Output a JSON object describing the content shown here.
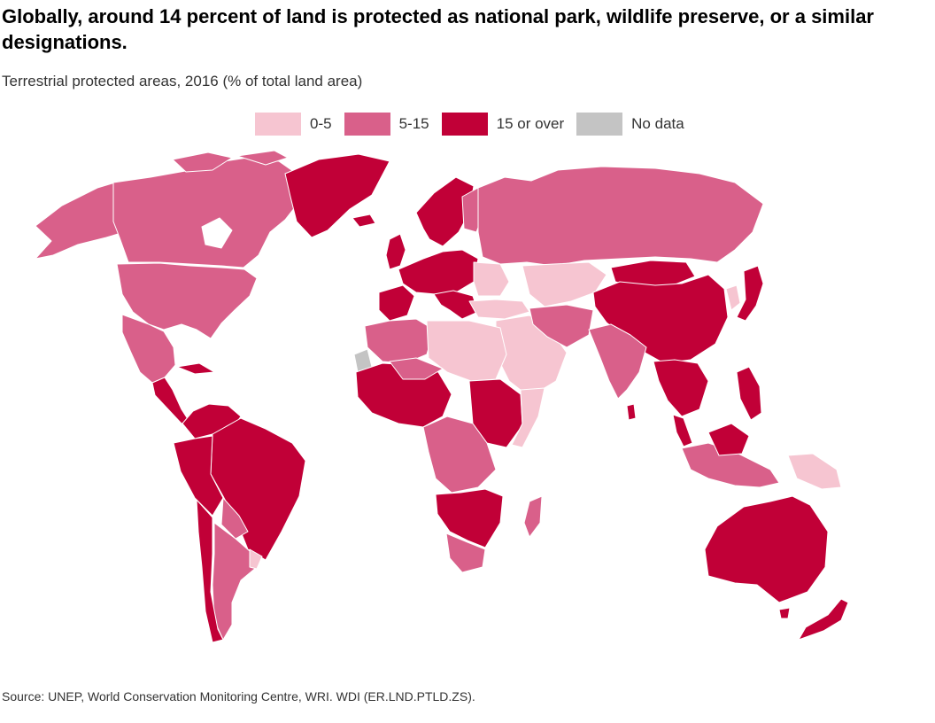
{
  "title": "Globally, around 14 percent of land is protected as national park, wildlife preserve, or a similar designations.",
  "subtitle": "Terrestrial protected areas, 2016 (% of total land area)",
  "legend": [
    {
      "label": "0-5",
      "color": "#f6c5d1"
    },
    {
      "label": "5-15",
      "color": "#d9608a"
    },
    {
      "label": "15 or over",
      "color": "#c10037"
    },
    {
      "label": "No data",
      "color": "#c4c4c4"
    }
  ],
  "source": "Source: UNEP, World Conservation Monitoring Centre, WRI. WDI (ER.LND.PTLD.ZS)."
}
